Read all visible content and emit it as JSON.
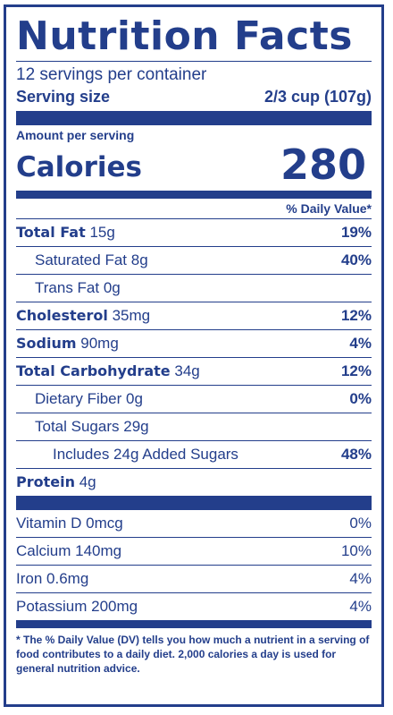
{
  "title": "Nutrition Facts",
  "servings_per_container": "12 servings per container",
  "serving_size": {
    "label": "Serving size",
    "value": "2/3 cup (107g)"
  },
  "amount_per_serving": "Amount per serving",
  "calories": {
    "label": "Calories",
    "value": "280"
  },
  "daily_value_header": "% Daily Value*",
  "nutrients": [
    {
      "name": "Total Fat",
      "amount": "15g",
      "dv": "19%"
    },
    {
      "name": "Saturated Fat",
      "amount": "8g",
      "dv": "40%"
    },
    {
      "name": "Trans Fat",
      "amount": "0g",
      "dv": ""
    },
    {
      "name": "Cholesterol",
      "amount": "35mg",
      "dv": "12%"
    },
    {
      "name": "Sodium",
      "amount": "90mg",
      "dv": "4%"
    },
    {
      "name": "Total Carbohydrate",
      "amount": "34g",
      "dv": "12%"
    },
    {
      "name": "Dietary Fiber",
      "amount": "0g",
      "dv": "0%"
    },
    {
      "name": "Total Sugars",
      "amount": "29g",
      "dv": ""
    },
    {
      "name": "Includes 24g Added Sugars",
      "amount": "",
      "dv": "48%"
    },
    {
      "name": "Protein",
      "amount": "4g",
      "dv": ""
    }
  ],
  "vitamins": [
    {
      "name": "Vitamin D",
      "amount": "0mcg",
      "dv": "0%"
    },
    {
      "name": "Calcium",
      "amount": "140mg",
      "dv": "10%"
    },
    {
      "name": "Iron",
      "amount": "0.6mg",
      "dv": "4%"
    },
    {
      "name": "Potassium",
      "amount": "200mg",
      "dv": "4%"
    }
  ],
  "footnote": "* The % Daily Value (DV) tells you how much a nutrient in a serving of food contributes to a daily diet. 2,000 calories a day is used for general nutrition advice.",
  "colors": {
    "ink": "#233e8b",
    "background": "#ffffff"
  }
}
